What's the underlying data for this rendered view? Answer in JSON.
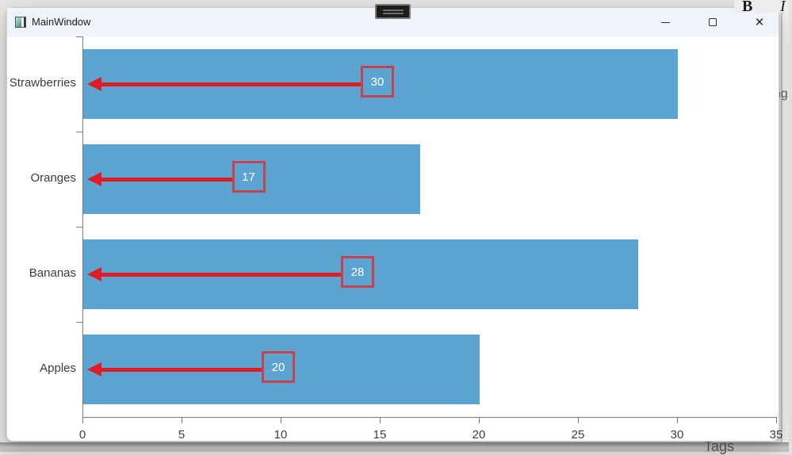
{
  "window": {
    "title": "MainWindow",
    "controls": {
      "close_glyph": "×"
    }
  },
  "background_app": {
    "bold_button": "B",
    "italic_button": "I",
    "clipped_text_right": "ng",
    "clipped_text_bottom": "Tags"
  },
  "chart_data": {
    "type": "bar",
    "orientation": "horizontal",
    "title": "",
    "categories": [
      "Strawberries",
      "Oranges",
      "Bananas",
      "Apples"
    ],
    "values": [
      30,
      17,
      28,
      20
    ],
    "xlim": [
      0,
      35
    ],
    "x_ticks": [
      0,
      5,
      10,
      15,
      20,
      25,
      30,
      35
    ],
    "grid": false,
    "legend": false,
    "annotations": {
      "style": "boxed value with red arrow pointing left to axis",
      "labels": [
        "30",
        "17",
        "28",
        "20"
      ]
    },
    "colors": {
      "bar": "#5BA4D1",
      "arrow": "#DC1F26",
      "box_border": "#C4424E",
      "box_text": "#FFFFFF",
      "axis": "#7A7A7A",
      "tick_text": "#3C3C3C"
    }
  }
}
